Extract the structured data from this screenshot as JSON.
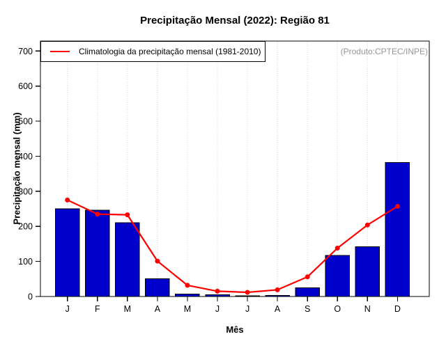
{
  "title": "Precipitação Mensal (2022): Região 81",
  "annotation": "(Produto:CPTEC/INPE)",
  "legend": {
    "label": "Climatologia da precipitação mensal (1981-2010)"
  },
  "colors": {
    "bar": "#0000CD",
    "bar_border": "#000000",
    "line": "#FF0000",
    "annotation": "#969696",
    "grid": "#D4D4D4",
    "axis": "#000000"
  },
  "chart_data": {
    "type": "bar",
    "title": "Precipitação Mensal (2022): Região 81",
    "xlabel": "Mês",
    "ylabel": "Precipitação mensal (mm)",
    "categories": [
      "J",
      "F",
      "M",
      "A",
      "M",
      "J",
      "J",
      "A",
      "S",
      "O",
      "N",
      "D"
    ],
    "series": [
      {
        "name": "Precipitação mensal 2022",
        "type": "bar",
        "values": [
          250,
          246,
          210,
          51,
          7,
          5,
          2,
          3,
          25,
          117,
          142,
          382
        ]
      },
      {
        "name": "Climatologia da precipitação mensal (1981-2010)",
        "type": "line",
        "values": [
          275,
          235,
          233,
          101,
          32,
          15,
          12,
          19,
          56,
          138,
          204,
          257
        ]
      }
    ],
    "ylim": [
      0,
      700
    ],
    "yticks": [
      0,
      100,
      200,
      300,
      400,
      500,
      600,
      700
    ],
    "grid": "vertical-dotted",
    "legend_position": "top-left"
  }
}
